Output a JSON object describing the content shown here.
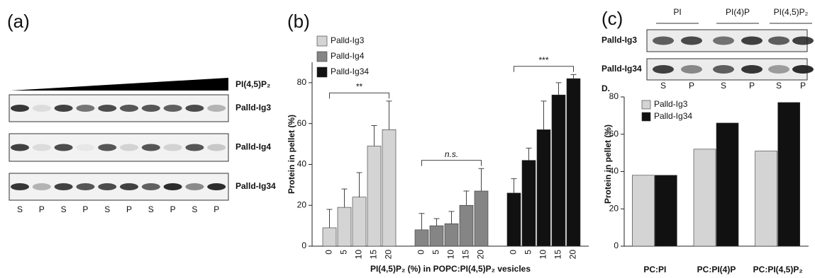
{
  "panel_a": {
    "label": "(a)",
    "gradient_label": "PI(4,5)P₂",
    "rows": [
      "Palld-Ig3",
      "Palld-Ig4",
      "Palld-Ig34"
    ],
    "lanes": [
      "S",
      "P",
      "S",
      "P",
      "S",
      "P",
      "S",
      "P",
      "S",
      "P"
    ]
  },
  "panel_c": {
    "label": "(c)",
    "lipids": [
      "PI",
      "PI(4)P",
      "PI(4,5)P₂"
    ],
    "rows": [
      "Palld-Ig3",
      "Palld-Ig34"
    ],
    "lanes": [
      "S",
      "P",
      "S",
      "P",
      "S",
      "P"
    ]
  },
  "chart_data": [
    {
      "type": "bar",
      "label": "(b)",
      "x_label": "PI(4,5)P₂ (%) in POPC:PI(4,5)P₂ vesicles",
      "y_label": "Protein in pellet (%)",
      "categories": [
        "0",
        "5",
        "10",
        "15",
        "20"
      ],
      "series": [
        {
          "name": "Palld-Ig3",
          "color": "#d4d4d4",
          "values": [
            9,
            19,
            24,
            49,
            57
          ],
          "errors": [
            9,
            9,
            12,
            10,
            14
          ]
        },
        {
          "name": "Palld-Ig4",
          "color": "#858585",
          "values": [
            8,
            10,
            11,
            20,
            27
          ],
          "errors": [
            8,
            3.5,
            6,
            7,
            11
          ]
        },
        {
          "name": "Palld-Ig34",
          "color": "#111111",
          "values": [
            26,
            42,
            57,
            74,
            82
          ],
          "errors": [
            7,
            6,
            14,
            6,
            2
          ]
        }
      ],
      "annotations": [
        "**",
        "n.s.",
        "***"
      ],
      "ylim": [
        0,
        90
      ],
      "yticks": [
        0,
        20,
        40,
        60,
        80
      ],
      "legend": "upper-left"
    },
    {
      "type": "bar",
      "title": "D.",
      "y_label": "Protein in pellet (%)",
      "categories": [
        "PC:PI",
        "PC:PI(4)P",
        "PC:PI(4,5)P₂"
      ],
      "series": [
        {
          "name": "Palld-Ig3",
          "color": "#d4d4d4",
          "values": [
            38,
            52,
            51
          ]
        },
        {
          "name": "Palld-Ig34",
          "color": "#111111",
          "values": [
            38,
            66,
            77
          ]
        }
      ],
      "ylim": [
        0,
        80
      ],
      "yticks": [
        0,
        20,
        40,
        60,
        80
      ],
      "legend": "upper-left"
    }
  ]
}
